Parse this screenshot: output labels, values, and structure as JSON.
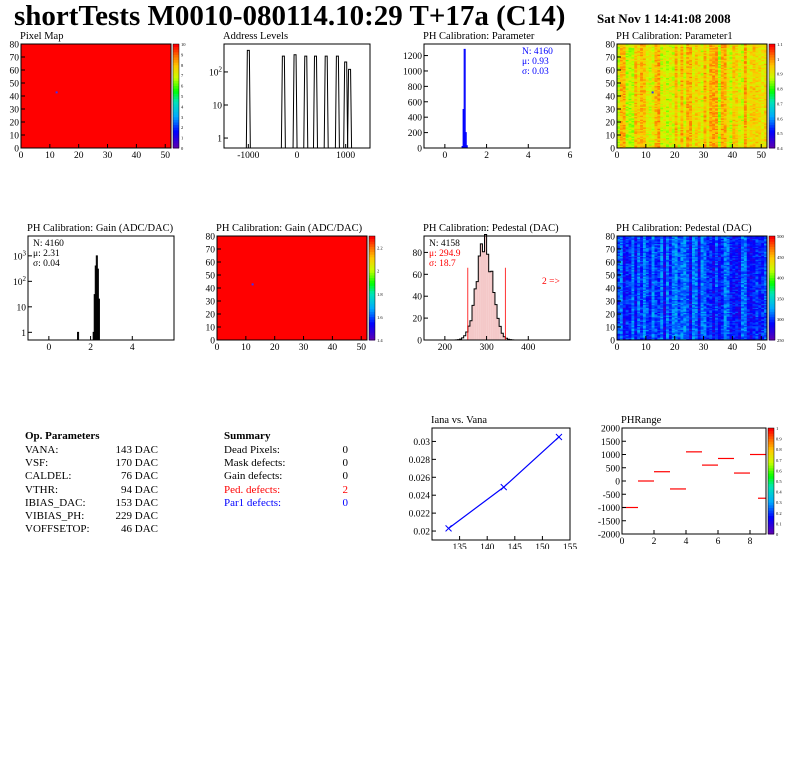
{
  "header": {
    "title": "shortTests M0010-080114.10:29 T+17a (C14)",
    "date": "Sat Nov  1 14:41:08 2008"
  },
  "op_params": {
    "title": "Op. Parameters",
    "rows": [
      {
        "name": "VANA:",
        "value": "143 DAC"
      },
      {
        "name": "VSF:",
        "value": "170 DAC"
      },
      {
        "name": "CALDEL:",
        "value": "76 DAC"
      },
      {
        "name": "VTHR:",
        "value": "94 DAC"
      },
      {
        "name": "IBIAS_DAC:",
        "value": "153 DAC"
      },
      {
        "name": "VIBIAS_PH:",
        "value": "229 DAC"
      },
      {
        "name": "VOFFSETOP:",
        "value": "46 DAC"
      }
    ]
  },
  "summary": {
    "title": "Summary",
    "rows": [
      {
        "name": "Dead Pixels:",
        "value": "0",
        "color": "#000000"
      },
      {
        "name": "Mask defects:",
        "value": "0",
        "color": "#000000"
      },
      {
        "name": "Gain defects:",
        "value": "0",
        "color": "#000000"
      },
      {
        "name": "Ped. defects:",
        "value": "2",
        "color": "#ff0000"
      },
      {
        "name": "Par1 defects:",
        "value": "0",
        "color": "#0000ff"
      }
    ]
  },
  "colors": {
    "accent_red": "#ff0000",
    "accent_blue": "#0000ff",
    "histo_line": "#000000"
  },
  "chart_data": [
    {
      "id": "pixel-map",
      "type": "heatmap",
      "title": "Pixel Map",
      "xlim": [
        0,
        52
      ],
      "ylim": [
        0,
        80
      ],
      "xticks": [
        0,
        10,
        20,
        30,
        40,
        50
      ],
      "yticks": [
        0,
        10,
        20,
        30,
        40,
        50,
        60,
        70,
        80
      ],
      "zlim": [
        0,
        10
      ],
      "zticks": [
        0,
        1,
        2,
        3,
        4,
        5,
        6,
        7,
        8,
        9,
        10
      ],
      "fill": "uniform",
      "value": 10,
      "marker": {
        "x": 12,
        "y": 42
      }
    },
    {
      "id": "address-levels",
      "type": "line",
      "title": "Address Levels",
      "xlim": [
        -1500,
        1500
      ],
      "xticks": [
        -1000,
        0,
        1000
      ],
      "ylog": true,
      "ylim": [
        0.5,
        700
      ],
      "yticks": [
        {
          "v": 1,
          "t": "1"
        },
        {
          "v": 10,
          "t": "10"
        },
        {
          "v": 100,
          "t": "10^2"
        }
      ],
      "peaks": [
        {
          "x": -1000,
          "h": 450
        },
        {
          "x": -280,
          "h": 300
        },
        {
          "x": -40,
          "h": 330
        },
        {
          "x": 180,
          "h": 300
        },
        {
          "x": 380,
          "h": 300
        },
        {
          "x": 600,
          "h": 300
        },
        {
          "x": 830,
          "h": 300
        },
        {
          "x": 1000,
          "h": 200
        },
        {
          "x": 1080,
          "h": 120
        }
      ]
    },
    {
      "id": "ph-cal-parameter",
      "type": "bar",
      "title": "PH Calibration: Parameter",
      "xlim": [
        -1,
        6
      ],
      "xticks": [
        0,
        2,
        4,
        6
      ],
      "ylim": [
        0,
        1350
      ],
      "yticks": [
        0,
        200,
        400,
        600,
        800,
        1000,
        1200
      ],
      "stats": [
        "N: 4160",
        "μ: 0.93",
        "σ: 0.03"
      ],
      "stats_color": "#0000ff",
      "line_color": "#0000ff",
      "bins": [
        {
          "x": 0.85,
          "h": 20
        },
        {
          "x": 0.9,
          "h": 500
        },
        {
          "x": 0.95,
          "h": 1280
        },
        {
          "x": 1.0,
          "h": 200
        },
        {
          "x": 1.05,
          "h": 30
        }
      ]
    },
    {
      "id": "ph-cal-parameter1",
      "type": "heatmap",
      "title": "PH Calibration: Parameter1",
      "xlim": [
        0,
        52
      ],
      "ylim": [
        0,
        80
      ],
      "xticks": [
        0,
        10,
        20,
        30,
        40,
        50
      ],
      "yticks": [
        0,
        10,
        20,
        30,
        40,
        50,
        60,
        70,
        80
      ],
      "zlim": [
        0.4,
        1.1
      ],
      "zticks": [
        0.4,
        0.5,
        0.6,
        0.7,
        0.8,
        0.9,
        1.0,
        1.1
      ],
      "fill": "noise",
      "zmean": 0.93,
      "zspread": 0.08,
      "marker": {
        "x": 12,
        "y": 42
      }
    },
    {
      "id": "ph-cal-gain-hist",
      "type": "bar",
      "title": "PH Calibration: Gain (ADC/DAC)",
      "xlim": [
        -1,
        6
      ],
      "xticks": [
        0,
        2,
        4
      ],
      "ylog": true,
      "ylim": [
        0.5,
        6000
      ],
      "yticks": [
        {
          "v": 1,
          "t": "1"
        },
        {
          "v": 10,
          "t": "10"
        },
        {
          "v": 100,
          "t": "10^2"
        },
        {
          "v": 1000,
          "t": "10^3"
        }
      ],
      "stats": [
        "N: 4160",
        "μ: 2.31",
        "σ: 0.04"
      ],
      "stats_color": "#000000",
      "line_color": "#000000",
      "bins": [
        {
          "x": 1.4,
          "h": 1
        },
        {
          "x": 2.15,
          "h": 1
        },
        {
          "x": 2.2,
          "h": 30
        },
        {
          "x": 2.25,
          "h": 400
        },
        {
          "x": 2.3,
          "h": 1000
        },
        {
          "x": 2.35,
          "h": 300
        },
        {
          "x": 2.4,
          "h": 20
        }
      ]
    },
    {
      "id": "ph-cal-gain-map",
      "type": "heatmap",
      "title": "PH Calibration: Gain (ADC/DAC)",
      "xlim": [
        0,
        52
      ],
      "ylim": [
        0,
        80
      ],
      "xticks": [
        0,
        10,
        20,
        30,
        40,
        50
      ],
      "yticks": [
        0,
        10,
        20,
        30,
        40,
        50,
        60,
        70,
        80
      ],
      "zlim": [
        1.4,
        2.3
      ],
      "zticks": [
        1.4,
        1.6,
        1.8,
        2.0,
        2.2
      ],
      "fill": "uniform",
      "value": 2.3,
      "marker": {
        "x": 12,
        "y": 42
      }
    },
    {
      "id": "ph-cal-pedestal-hist",
      "type": "bar",
      "title": "PH Calibration: Pedestal (DAC)",
      "xlim": [
        150,
        500
      ],
      "xticks": [
        200,
        300,
        400
      ],
      "ylim": [
        0,
        95
      ],
      "yticks": [
        0,
        20,
        40,
        60,
        80
      ],
      "stats": [
        "N: 4158",
        "μ: 294.9",
        "σ: 18.7"
      ],
      "stats_colors": [
        "#000000",
        "#ff0000",
        "#ff0000"
      ],
      "line_color": "#000000",
      "gauss": {
        "mean": 294.9,
        "sigma": 18.7,
        "peak": 88,
        "binwidth": 5
      },
      "cuts": [
        255,
        345
      ],
      "cut_label": "2 =>",
      "cut_color": "#ff0000"
    },
    {
      "id": "ph-cal-pedestal-map",
      "type": "heatmap",
      "title": "PH Calibration: Pedestal (DAC)",
      "xlim": [
        0,
        52
      ],
      "ylim": [
        0,
        80
      ],
      "xticks": [
        0,
        10,
        20,
        30,
        40,
        50
      ],
      "yticks": [
        0,
        10,
        20,
        30,
        40,
        50,
        60,
        70,
        80
      ],
      "zlim": [
        250,
        500
      ],
      "zticks": [
        250,
        300,
        350,
        400,
        450,
        500
      ],
      "fill": "noise",
      "zmean": 300,
      "zspread": 28,
      "marker": {
        "x": 12,
        "y": 42
      }
    },
    {
      "id": "iana-vs-vana",
      "type": "line",
      "title": "Iana vs. Vana",
      "xlim": [
        130,
        155
      ],
      "xticks": [
        135,
        140,
        145,
        150,
        155
      ],
      "ylim": [
        0.019,
        0.0315
      ],
      "yticks": [
        0.02,
        0.022,
        0.024,
        0.026,
        0.028,
        0.03
      ],
      "line_color": "#0000ff",
      "points": [
        [
          133,
          0.0203
        ],
        [
          143,
          0.0249
        ],
        [
          153,
          0.0305
        ]
      ]
    },
    {
      "id": "phrange",
      "type": "scatter",
      "title": "PHRange",
      "xlim": [
        0,
        9
      ],
      "xticks": [
        0,
        2,
        4,
        6,
        8
      ],
      "ylim": [
        -2000,
        2000
      ],
      "yticks": [
        -2000,
        -1500,
        -1000,
        -500,
        0,
        500,
        1000,
        1500,
        2000
      ],
      "zlim": [
        0,
        1
      ],
      "zticks": [
        0,
        0.1,
        0.2,
        0.3,
        0.4,
        0.5,
        0.6,
        0.7,
        0.8,
        0.9,
        1
      ],
      "segment_color": "#ff0000",
      "segments": [
        [
          0,
          -1000
        ],
        [
          1,
          0
        ],
        [
          2,
          350
        ],
        [
          3,
          -300
        ],
        [
          4,
          1100
        ],
        [
          5,
          600
        ],
        [
          6,
          850
        ],
        [
          7,
          300
        ],
        [
          8,
          1000
        ],
        [
          8.5,
          -650
        ]
      ]
    }
  ]
}
